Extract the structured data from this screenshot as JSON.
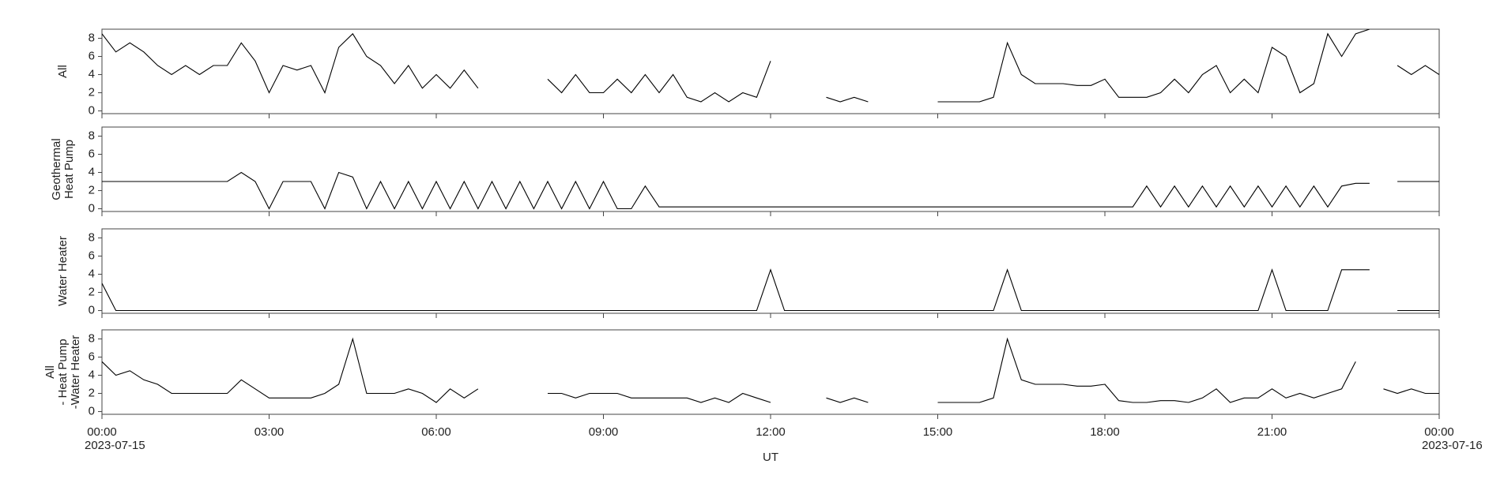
{
  "chart_data": [
    {
      "type": "line",
      "ylabel": [
        "All"
      ],
      "x": [
        0,
        0.25,
        0.5,
        0.75,
        1,
        1.25,
        1.5,
        1.75,
        2,
        2.25,
        2.5,
        2.75,
        3,
        3.25,
        3.5,
        3.75,
        4,
        4.25,
        4.5,
        4.75,
        5,
        5.25,
        5.5,
        5.75,
        6,
        6.25,
        6.5,
        6.75,
        7,
        7.25,
        7.5,
        7.75,
        8,
        8.25,
        8.5,
        8.75,
        9,
        9.25,
        9.5,
        9.75,
        10,
        10.25,
        10.5,
        10.75,
        11,
        11.25,
        11.5,
        11.75,
        12,
        12.25,
        12.5,
        12.75,
        13,
        13.25,
        13.5,
        13.75,
        14,
        14.25,
        14.5,
        14.75,
        15,
        15.25,
        15.5,
        15.75,
        16,
        16.25,
        16.5,
        16.75,
        17,
        17.25,
        17.5,
        17.75,
        18,
        18.25,
        18.5,
        18.75,
        19,
        19.25,
        19.5,
        19.75,
        20,
        20.25,
        20.5,
        20.75,
        21,
        21.25,
        21.5,
        21.75,
        22,
        22.25,
        22.5,
        22.75,
        23,
        23.25,
        23.5,
        23.75,
        24
      ],
      "series": [
        {
          "color": "#000000",
          "values": [
            8.5,
            6.5,
            7.5,
            6.5,
            5,
            4,
            5,
            4,
            5,
            5,
            7.5,
            5.5,
            2,
            5,
            4.5,
            5,
            2,
            7,
            8.5,
            6,
            5,
            3,
            5,
            2.5,
            4,
            2.5,
            4.5,
            2.5,
            null,
            null,
            null,
            null,
            3.5,
            2,
            4,
            2,
            2,
            3.5,
            2,
            4,
            2,
            4,
            1.5,
            1,
            2,
            1,
            2,
            1.5,
            5.5,
            null,
            null,
            null,
            1.5,
            1,
            1.5,
            1,
            null,
            null,
            null,
            null,
            1,
            1,
            1,
            1,
            1.5,
            7.5,
            4,
            3,
            3,
            3,
            2.8,
            2.8,
            3.5,
            1.5,
            1.5,
            1.5,
            2,
            3.5,
            2,
            4,
            5,
            2,
            3.5,
            2,
            7,
            6,
            2,
            3,
            8.5,
            6,
            8.5,
            9,
            null,
            5,
            4,
            5,
            4
          ]
        }
      ],
      "xlim": [
        0,
        24
      ],
      "xticks": [
        0,
        3,
        6,
        9,
        12,
        15,
        18,
        21,
        24
      ],
      "ylim": [
        -0.3,
        9
      ],
      "yticks": [
        0,
        2,
        4,
        6,
        8
      ]
    },
    {
      "type": "line",
      "ylabel": [
        "Geothermal",
        "Heat Pump"
      ],
      "x": [
        0,
        0.25,
        0.5,
        0.75,
        1,
        1.25,
        1.5,
        1.75,
        2,
        2.25,
        2.5,
        2.75,
        3,
        3.25,
        3.5,
        3.75,
        4,
        4.25,
        4.5,
        4.75,
        5,
        5.25,
        5.5,
        5.75,
        6,
        6.25,
        6.5,
        6.75,
        7,
        7.25,
        7.5,
        7.75,
        8,
        8.25,
        8.5,
        8.75,
        9,
        9.25,
        9.5,
        9.75,
        10,
        10.25,
        10.5,
        10.75,
        11,
        11.25,
        11.5,
        11.75,
        12,
        12.25,
        12.5,
        12.75,
        13,
        13.25,
        13.5,
        13.75,
        14,
        14.25,
        14.5,
        14.75,
        15,
        15.25,
        15.5,
        15.75,
        16,
        16.25,
        16.5,
        16.75,
        17,
        17.25,
        17.5,
        17.75,
        18,
        18.25,
        18.5,
        18.75,
        19,
        19.25,
        19.5,
        19.75,
        20,
        20.25,
        20.5,
        20.75,
        21,
        21.25,
        21.5,
        21.75,
        22,
        22.25,
        22.5,
        22.75,
        23,
        23.25,
        23.5,
        23.75,
        24
      ],
      "series": [
        {
          "color": "#000000",
          "values": [
            3,
            3,
            3,
            3,
            3,
            3,
            3,
            3,
            3,
            3,
            4,
            3,
            0,
            3,
            3,
            3,
            0,
            4,
            3.5,
            0,
            3,
            0,
            3,
            0,
            3,
            0,
            3,
            0,
            3,
            0,
            3,
            0,
            3,
            0,
            3,
            0,
            3,
            0,
            0,
            2.5,
            0.2,
            0.2,
            0.2,
            0.2,
            0.2,
            0.2,
            0.2,
            0.2,
            0.2,
            0.2,
            0.2,
            0.2,
            0.2,
            0.2,
            0.2,
            0.2,
            0.2,
            0.2,
            0.2,
            0.2,
            0.2,
            0.2,
            0.2,
            0.2,
            0.2,
            0.2,
            0.2,
            0.2,
            0.2,
            0.2,
            0.2,
            0.2,
            0.2,
            0.2,
            0.2,
            2.5,
            0.2,
            2.5,
            0.2,
            2.5,
            0.2,
            2.5,
            0.2,
            2.5,
            0.2,
            2.5,
            0.2,
            2.5,
            0.2,
            2.5,
            2.8,
            2.8,
            null,
            3,
            3,
            3,
            3
          ]
        }
      ],
      "xlim": [
        0,
        24
      ],
      "xticks": [
        0,
        3,
        6,
        9,
        12,
        15,
        18,
        21,
        24
      ],
      "ylim": [
        -0.3,
        9
      ],
      "yticks": [
        0,
        2,
        4,
        6,
        8
      ]
    },
    {
      "type": "line",
      "ylabel": [
        "Water Heater"
      ],
      "x": [
        0,
        0.25,
        0.5,
        0.75,
        1,
        1.25,
        1.5,
        1.75,
        2,
        2.25,
        2.5,
        2.75,
        3,
        3.25,
        3.5,
        3.75,
        4,
        4.25,
        4.5,
        4.75,
        5,
        5.25,
        5.5,
        5.75,
        6,
        6.25,
        6.5,
        6.75,
        7,
        7.25,
        7.5,
        7.75,
        8,
        8.25,
        8.5,
        8.75,
        9,
        9.25,
        9.5,
        9.75,
        10,
        10.25,
        10.5,
        10.75,
        11,
        11.25,
        11.5,
        11.75,
        12,
        12.25,
        12.5,
        12.75,
        13,
        13.25,
        13.5,
        13.75,
        14,
        14.25,
        14.5,
        14.75,
        15,
        15.25,
        15.5,
        15.75,
        16,
        16.25,
        16.5,
        16.75,
        17,
        17.25,
        17.5,
        17.75,
        18,
        18.25,
        18.5,
        18.75,
        19,
        19.25,
        19.5,
        19.75,
        20,
        20.25,
        20.5,
        20.75,
        21,
        21.25,
        21.5,
        21.75,
        22,
        22.25,
        22.5,
        22.75,
        23,
        23.25,
        23.5,
        23.75,
        24
      ],
      "series": [
        {
          "color": "#000000",
          "values": [
            3,
            0,
            0,
            0,
            0,
            0,
            0,
            0,
            0,
            0,
            0,
            0,
            0,
            0,
            0,
            0,
            0,
            0,
            0,
            0,
            0,
            0,
            0,
            0,
            0,
            0,
            0,
            0,
            0,
            0,
            0,
            0,
            0,
            0,
            0,
            0,
            0,
            0,
            0,
            0,
            0,
            0,
            0,
            0,
            0,
            0,
            0,
            0,
            4.5,
            0,
            0,
            0,
            0,
            0,
            0,
            0,
            0,
            0,
            0,
            0,
            0,
            0,
            0,
            0,
            0,
            4.5,
            0,
            0,
            0,
            0,
            0,
            0,
            0,
            0,
            0,
            0,
            0,
            0,
            0,
            0,
            0,
            0,
            0,
            0,
            4.5,
            0,
            0,
            0,
            0,
            4.5,
            4.5,
            4.5,
            null,
            0,
            0,
            0,
            0
          ]
        }
      ],
      "xlim": [
        0,
        24
      ],
      "xticks": [
        0,
        3,
        6,
        9,
        12,
        15,
        18,
        21,
        24
      ],
      "ylim": [
        -0.3,
        9
      ],
      "yticks": [
        0,
        2,
        4,
        6,
        8
      ]
    },
    {
      "type": "line",
      "ylabel": [
        "All",
        "- Heat Pump",
        "-Water Heater"
      ],
      "x": [
        0,
        0.25,
        0.5,
        0.75,
        1,
        1.25,
        1.5,
        1.75,
        2,
        2.25,
        2.5,
        2.75,
        3,
        3.25,
        3.5,
        3.75,
        4,
        4.25,
        4.5,
        4.75,
        5,
        5.25,
        5.5,
        5.75,
        6,
        6.25,
        6.5,
        6.75,
        7,
        7.25,
        7.5,
        7.75,
        8,
        8.25,
        8.5,
        8.75,
        9,
        9.25,
        9.5,
        9.75,
        10,
        10.25,
        10.5,
        10.75,
        11,
        11.25,
        11.5,
        11.75,
        12,
        12.25,
        12.5,
        12.75,
        13,
        13.25,
        13.5,
        13.75,
        14,
        14.25,
        14.5,
        14.75,
        15,
        15.25,
        15.5,
        15.75,
        16,
        16.25,
        16.5,
        16.75,
        17,
        17.25,
        17.5,
        17.75,
        18,
        18.25,
        18.5,
        18.75,
        19,
        19.25,
        19.5,
        19.75,
        20,
        20.25,
        20.5,
        20.75,
        21,
        21.25,
        21.5,
        21.75,
        22,
        22.25,
        22.5,
        22.75,
        23,
        23.25,
        23.5,
        23.75,
        24
      ],
      "series": [
        {
          "color": "#000000",
          "values": [
            5.5,
            4,
            4.5,
            3.5,
            3,
            2,
            2,
            2,
            2,
            2,
            3.5,
            2.5,
            1.5,
            1.5,
            1.5,
            1.5,
            2,
            3,
            8,
            2,
            2,
            2,
            2.5,
            2,
            1,
            2.5,
            1.5,
            2.5,
            null,
            null,
            null,
            null,
            2,
            2,
            1.5,
            2,
            2,
            2,
            1.5,
            1.5,
            1.5,
            1.5,
            1.5,
            1,
            1.5,
            1,
            2,
            1.5,
            1,
            null,
            null,
            null,
            1.5,
            1,
            1.5,
            1,
            null,
            null,
            null,
            null,
            1,
            1,
            1,
            1,
            1.5,
            8,
            3.5,
            3,
            3,
            3,
            2.8,
            2.8,
            3,
            1.2,
            1,
            1,
            1.2,
            1.2,
            1,
            1.5,
            2.5,
            1,
            1.5,
            1.5,
            2.5,
            1.5,
            2,
            1.5,
            2,
            2.5,
            5.5,
            null,
            2.5,
            2,
            2.5,
            2,
            2
          ]
        }
      ],
      "xlim": [
        0,
        24
      ],
      "xticks": [
        {
          "value": 0,
          "label": "00:00"
        },
        {
          "value": 3,
          "label": "03:00"
        },
        {
          "value": 6,
          "label": "06:00"
        },
        {
          "value": 9,
          "label": "09:00"
        },
        {
          "value": 12,
          "label": "12:00"
        },
        {
          "value": 15,
          "label": "15:00"
        },
        {
          "value": 18,
          "label": "18:00"
        },
        {
          "value": 21,
          "label": "21:00"
        },
        {
          "value": 24,
          "label": "00:00"
        }
      ],
      "xlabel": "UT",
      "annotations": [
        {
          "text": "2023-07-15",
          "x": 0
        },
        {
          "text": "2023-07-16",
          "x": 24
        }
      ],
      "ylim": [
        -0.3,
        9
      ],
      "yticks": [
        0,
        2,
        4,
        6,
        8
      ]
    }
  ]
}
